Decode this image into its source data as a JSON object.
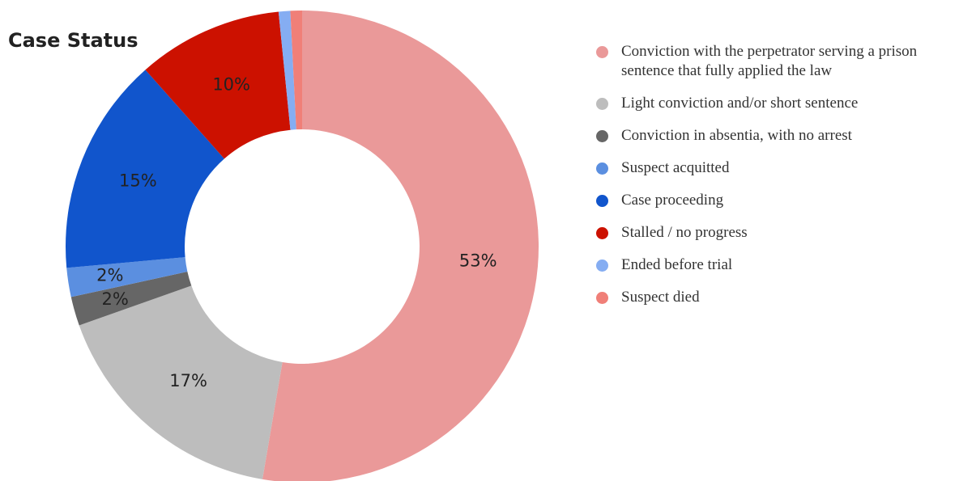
{
  "chart_data": {
    "type": "pie",
    "title": "Case Status",
    "categories": [
      "Conviction with the perpetrator serving a prison sentence that fully applied the law",
      "Light conviction and/or short sentence",
      "Conviction in absentia, with no arrest",
      "Suspect acquitted",
      "Case proceeding",
      "Stalled / no progress",
      "Ended before trial",
      "Suspect died"
    ],
    "values": [
      53,
      17,
      2,
      2,
      15,
      10,
      0.8,
      0.8
    ],
    "value_labels": [
      "53%",
      "17%",
      "2%",
      "2%",
      "15%",
      "10%",
      null,
      null
    ],
    "colors": [
      "#ea9999",
      "#bdbdbd",
      "#666666",
      "#5b8fe0",
      "#1155cc",
      "#cc1100",
      "#85adf2",
      "#f07f78"
    ],
    "legend": "right"
  }
}
